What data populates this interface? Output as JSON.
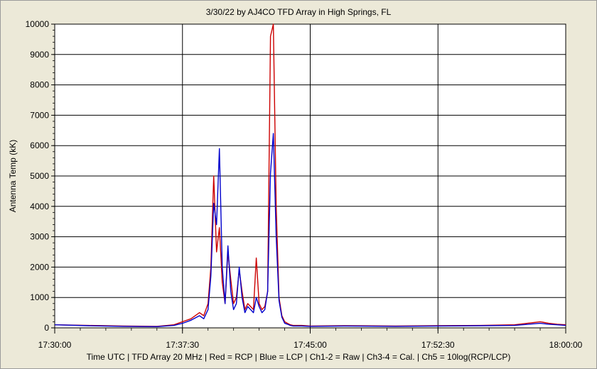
{
  "chart_data": {
    "type": "line",
    "title": "3/30/22  by  AJ4CO TFD Array  in  High Springs, FL",
    "ylabel": "Antenna Temp (kK)",
    "footer": "Time UTC | TFD Array 20 MHz | Red = RCP | Blue = LCP | Ch1-2 = Raw | Ch3-4 = Cal. | Ch5 = 10log(RCP/LCP)",
    "ylim": [
      0,
      10000
    ],
    "xlim": [
      "17:30:00",
      "18:00:00"
    ],
    "y_ticks": [
      "0",
      "1000",
      "2000",
      "3000",
      "4000",
      "5000",
      "6000",
      "7000",
      "8000",
      "9000",
      "10000"
    ],
    "x_ticks": [
      "17:30:00",
      "17:37:30",
      "17:45:00",
      "17:52:30",
      "18:00:00"
    ],
    "grid": true,
    "colors": {
      "rcp": "#CC0000",
      "lcp": "#0000CC",
      "plot_bg": "#FFFFFF",
      "window_bg": "#ECE9D8"
    },
    "series": [
      {
        "name": "Red = RCP",
        "x": [
          "17:30:00",
          "17:32:00",
          "17:34:00",
          "17:36:00",
          "17:37:00",
          "17:37:30",
          "17:38:00",
          "17:38:30",
          "17:38:45",
          "17:39:00",
          "17:39:10",
          "17:39:20",
          "17:39:30",
          "17:39:40",
          "17:39:50",
          "17:40:00",
          "17:40:10",
          "17:40:20",
          "17:40:30",
          "17:40:40",
          "17:40:50",
          "17:41:00",
          "17:41:10",
          "17:41:20",
          "17:41:30",
          "17:41:40",
          "17:41:50",
          "17:42:00",
          "17:42:10",
          "17:42:20",
          "17:42:30",
          "17:42:40",
          "17:42:50",
          "17:43:00",
          "17:43:10",
          "17:43:20",
          "17:43:30",
          "17:43:40",
          "17:43:50",
          "17:44:00",
          "17:44:30",
          "17:45:00",
          "17:47:00",
          "17:50:00",
          "17:52:30",
          "17:55:00",
          "17:57:00",
          "17:58:30",
          "17:59:00",
          "17:59:30",
          "18:00:00"
        ],
        "values": [
          100,
          80,
          60,
          50,
          100,
          200,
          300,
          500,
          400,
          800,
          2000,
          5000,
          2500,
          3300,
          1500,
          800,
          2500,
          1600,
          800,
          1000,
          1900,
          1200,
          600,
          800,
          700,
          600,
          2300,
          800,
          600,
          700,
          1200,
          9600,
          10000,
          4000,
          1000,
          400,
          200,
          150,
          100,
          80,
          80,
          60,
          70,
          60,
          70,
          80,
          100,
          200,
          150,
          120,
          100
        ]
      },
      {
        "name": "Blue = LCP",
        "x": [
          "17:30:00",
          "17:32:00",
          "17:34:00",
          "17:36:00",
          "17:37:00",
          "17:37:30",
          "17:38:00",
          "17:38:30",
          "17:38:45",
          "17:39:00",
          "17:39:10",
          "17:39:20",
          "17:39:30",
          "17:39:40",
          "17:39:50",
          "17:40:00",
          "17:40:10",
          "17:40:20",
          "17:40:30",
          "17:40:40",
          "17:40:50",
          "17:41:00",
          "17:41:10",
          "17:41:20",
          "17:41:30",
          "17:41:40",
          "17:41:50",
          "17:42:00",
          "17:42:10",
          "17:42:20",
          "17:42:30",
          "17:42:40",
          "17:42:50",
          "17:43:00",
          "17:43:10",
          "17:43:20",
          "17:43:30",
          "17:43:40",
          "17:43:50",
          "17:44:00",
          "17:44:30",
          "17:45:00",
          "17:47:00",
          "17:50:00",
          "17:52:30",
          "17:55:00",
          "17:57:00",
          "17:58:30",
          "17:59:00",
          "17:59:30",
          "18:00:00"
        ],
        "values": [
          100,
          70,
          50,
          40,
          80,
          150,
          250,
          400,
          300,
          600,
          1700,
          4100,
          3400,
          5900,
          2000,
          800,
          2700,
          1200,
          600,
          800,
          2000,
          1000,
          500,
          700,
          600,
          500,
          1000,
          700,
          500,
          600,
          1200,
          5100,
          6400,
          3000,
          900,
          350,
          150,
          120,
          80,
          60,
          60,
          50,
          60,
          50,
          60,
          70,
          80,
          150,
          120,
          100,
          80
        ]
      }
    ]
  }
}
